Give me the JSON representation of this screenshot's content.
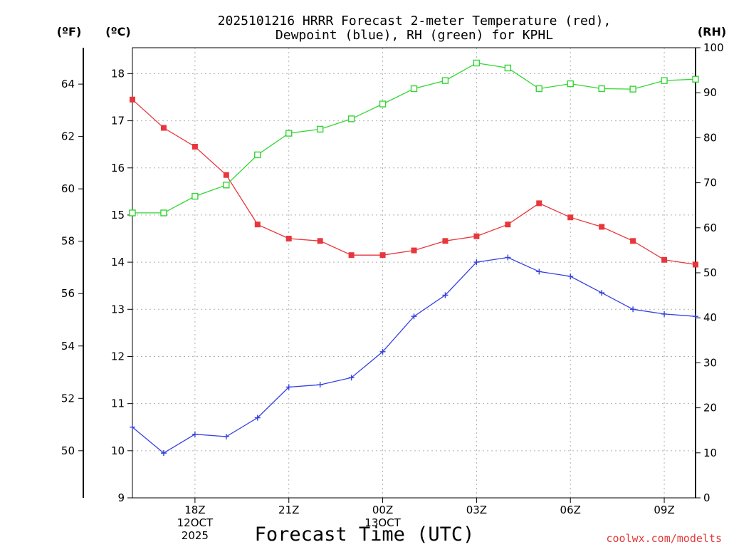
{
  "chart_data": {
    "type": "line",
    "title_line1": "2025101216 HRRR Forecast 2-meter Temperature (red),",
    "title_line2": "Dewpoint (blue), RH (green) for KPHL",
    "xlabel": "Forecast Time (UTC)",
    "credit": "coolwx.com/modelts",
    "units": {
      "fahrenheit": "(ºF)",
      "celsius": "(ºC)",
      "rh": "(RH)"
    },
    "x_hours": [
      16,
      17,
      18,
      19,
      20,
      21,
      22,
      23,
      24,
      25,
      26,
      27,
      28,
      29,
      30,
      31,
      32,
      33,
      34
    ],
    "x_range": [
      16,
      34
    ],
    "x_ticks": [
      {
        "hour": 18,
        "lines": [
          "18Z",
          "12OCT",
          "2025"
        ]
      },
      {
        "hour": 21,
        "lines": [
          "21Z"
        ]
      },
      {
        "hour": 24,
        "lines": [
          "00Z",
          "13OCT"
        ]
      },
      {
        "hour": 27,
        "lines": [
          "03Z"
        ]
      },
      {
        "hour": 30,
        "lines": [
          "06Z"
        ]
      },
      {
        "hour": 33,
        "lines": [
          "09Z"
        ]
      }
    ],
    "celsius_axis": {
      "range": [
        9,
        18.55
      ],
      "ticks": [
        9,
        10,
        11,
        12,
        13,
        14,
        15,
        16,
        17,
        18
      ]
    },
    "fahrenheit_axis": {
      "ticks": [
        50,
        52,
        54,
        56,
        58,
        60,
        62,
        64
      ]
    },
    "rh_axis": {
      "range": [
        0,
        100
      ],
      "ticks": [
        0,
        10,
        20,
        30,
        40,
        50,
        60,
        70,
        80,
        90,
        100
      ]
    },
    "series": [
      {
        "name": "Temperature",
        "units": "C",
        "color": "#e8373c",
        "marker": "filled-square",
        "values": [
          17.45,
          16.85,
          16.45,
          15.85,
          14.8,
          14.5,
          14.45,
          14.15,
          14.15,
          14.25,
          14.45,
          14.55,
          14.8,
          15.25,
          14.95,
          14.75,
          14.45,
          14.05,
          13.95
        ]
      },
      {
        "name": "Dewpoint",
        "units": "C",
        "color": "#3340e0",
        "marker": "plus",
        "values": [
          10.5,
          9.95,
          10.35,
          10.3,
          10.7,
          11.35,
          11.4,
          11.55,
          12.1,
          12.85,
          13.3,
          14.0,
          14.1,
          13.8,
          13.7,
          13.35,
          13.0,
          12.9,
          12.85
        ]
      },
      {
        "name": "Relative Humidity",
        "units": "%",
        "color": "#33d633",
        "marker": "open-square",
        "values": [
          63.3,
          63.3,
          67.0,
          69.5,
          76.2,
          81.0,
          81.9,
          84.2,
          87.5,
          90.9,
          92.7,
          96.6,
          95.5,
          90.9,
          92.0,
          90.9,
          90.8,
          92.7,
          93.0
        ]
      }
    ]
  }
}
